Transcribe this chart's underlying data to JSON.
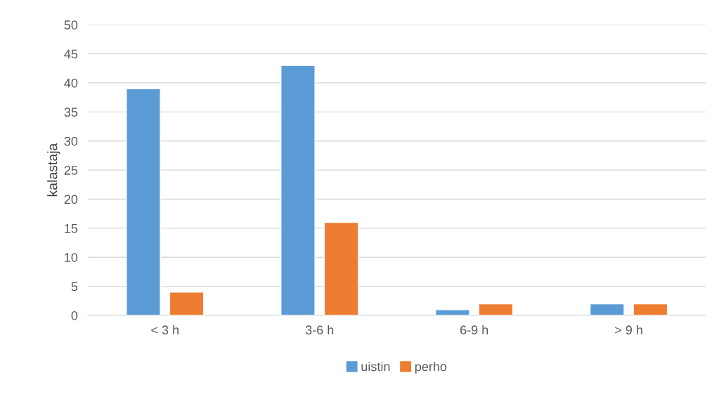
{
  "chart_data": {
    "type": "bar",
    "ylabel": "kalastaja",
    "categories": [
      "< 3 h",
      "3-6 h",
      "6-9 h",
      "> 9 h"
    ],
    "series": [
      {
        "name": "uistin",
        "color": "#5b9bd5",
        "values": [
          39,
          43,
          1,
          2
        ]
      },
      {
        "name": "perho",
        "color": "#ed7d31",
        "values": [
          4,
          16,
          2,
          2
        ]
      }
    ],
    "ylim": [
      0,
      50
    ],
    "yticks": [
      0,
      5,
      10,
      15,
      20,
      25,
      30,
      35,
      40,
      45,
      50
    ],
    "grid": "y",
    "legend": "bottom"
  }
}
